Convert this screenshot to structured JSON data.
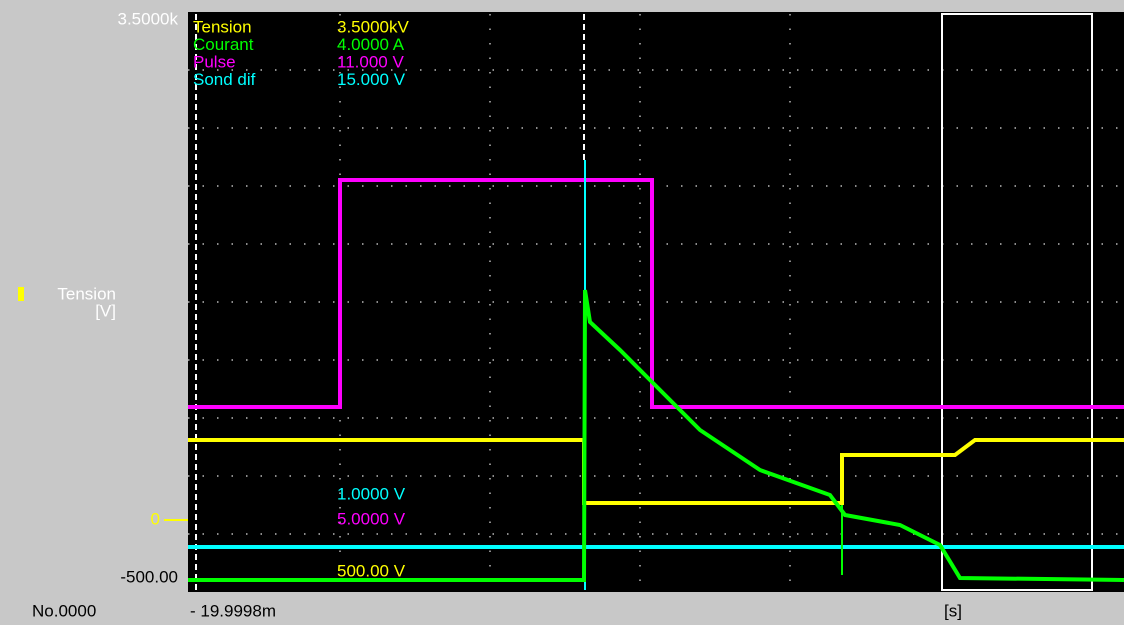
{
  "axis": {
    "top": "3.5000k",
    "channel_name": "Tension",
    "channel_unit": "[V]",
    "zero": "0",
    "bottom": "-500.00"
  },
  "footer": {
    "index": "No.0000",
    "x_start": "- 19.9998m",
    "x_unit": "[s]"
  },
  "legend": [
    {
      "name": "Tension",
      "scale": "3.5000kV",
      "color": "#ffff00"
    },
    {
      "name": "Courant",
      "scale": "4.0000 A",
      "color": "#00ff00"
    },
    {
      "name": "Pulse",
      "scale": "11.000 V",
      "color": "#ff00ff"
    },
    {
      "name": "Sond dif",
      "scale": "15.000 V",
      "color": "#00ffff"
    }
  ],
  "offsets": [
    {
      "label": "1.0000 V",
      "color": "#00ffff"
    },
    {
      "label": "5.0000 V",
      "color": "#ff00ff"
    },
    {
      "label": "500.00 V",
      "color": "#ffff00"
    }
  ]
}
